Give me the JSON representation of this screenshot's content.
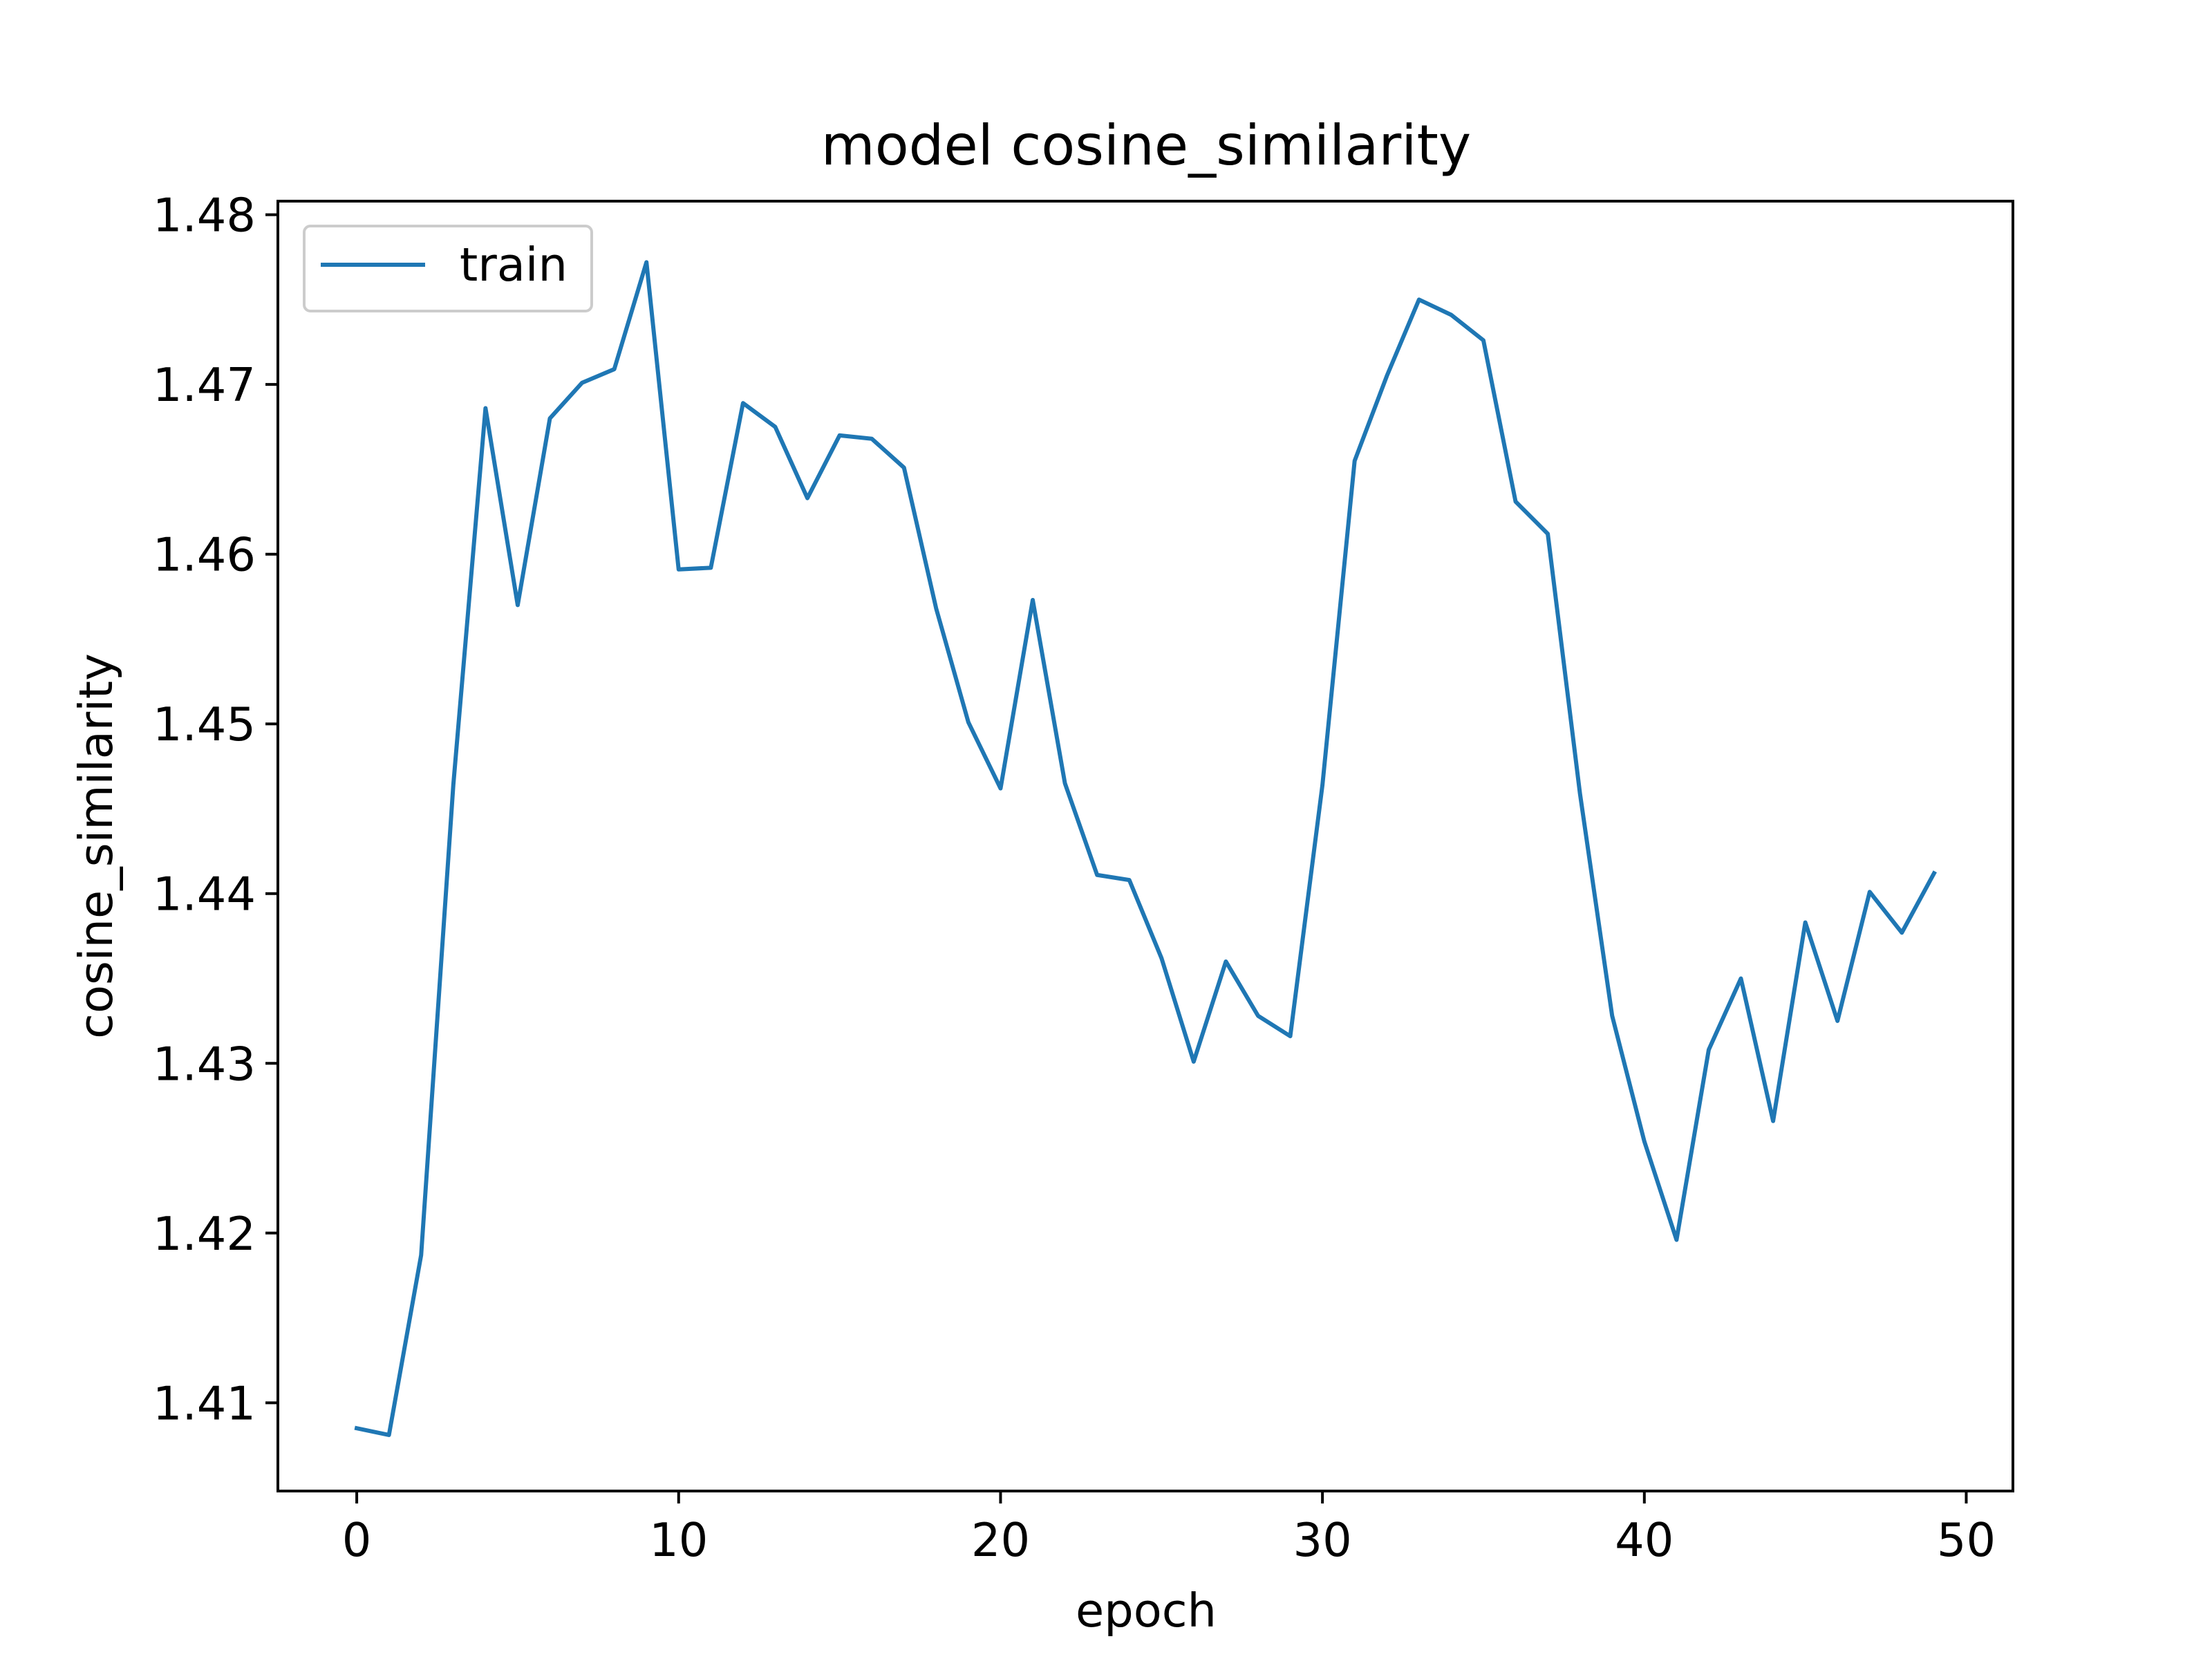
{
  "chart_data": {
    "type": "line",
    "title": "model cosine_similarity",
    "xlabel": "epoch",
    "ylabel": "cosine_similarity",
    "xlim": [
      -2.45,
      51.45
    ],
    "ylim": [
      1.4048,
      1.4808
    ],
    "xticks": [
      0,
      10,
      20,
      30,
      40,
      50
    ],
    "xtick_labels": [
      "0",
      "10",
      "20",
      "30",
      "40",
      "50"
    ],
    "yticks": [
      1.41,
      1.42,
      1.43,
      1.44,
      1.45,
      1.46,
      1.47,
      1.48
    ],
    "ytick_labels": [
      "1.41",
      "1.42",
      "1.43",
      "1.44",
      "1.45",
      "1.46",
      "1.47",
      "1.48"
    ],
    "grid": false,
    "legend_position": "upper-left",
    "x": [
      0,
      1,
      2,
      3,
      4,
      5,
      6,
      7,
      8,
      9,
      10,
      11,
      12,
      13,
      14,
      15,
      16,
      17,
      18,
      19,
      20,
      21,
      22,
      23,
      24,
      25,
      26,
      27,
      28,
      29,
      30,
      31,
      32,
      33,
      34,
      35,
      36,
      37,
      38,
      39,
      40,
      41,
      42,
      43,
      44,
      45,
      46,
      47,
      48,
      49
    ],
    "series": [
      {
        "name": "train",
        "color": "#1f77b4",
        "values": [
          1.4085,
          1.4081,
          1.4187,
          1.4464,
          1.4686,
          1.457,
          1.468,
          1.4701,
          1.4709,
          1.4772,
          1.4591,
          1.4592,
          1.4689,
          1.4675,
          1.4633,
          1.467,
          1.4668,
          1.4651,
          1.4568,
          1.4501,
          1.4462,
          1.4573,
          1.4465,
          1.4411,
          1.4408,
          1.4362,
          1.4301,
          1.436,
          1.4328,
          1.4316,
          1.4464,
          1.4655,
          1.4705,
          1.475,
          1.4741,
          1.4726,
          1.4631,
          1.4612,
          1.4459,
          1.4328,
          1.4254,
          1.4196,
          1.4308,
          1.435,
          1.4266,
          1.4383,
          1.4325,
          1.4401,
          1.4377,
          1.4412
        ]
      }
    ]
  }
}
